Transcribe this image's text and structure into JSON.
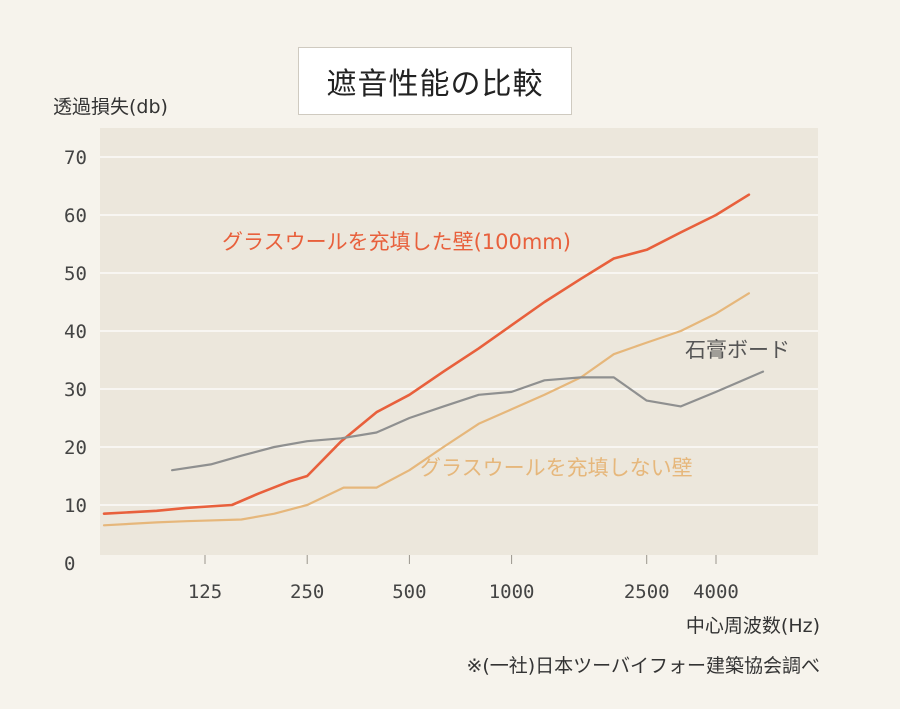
{
  "chart_data": {
    "type": "line",
    "title": "遮音性能の比較",
    "ylabel": "透過損失(db)",
    "xlabel": "中心周波数(Hz)",
    "source_note": "※(一社)日本ツーバイフォー建築協会調べ",
    "ylim": [
      0,
      72
    ],
    "y_ticks": [
      0,
      10,
      20,
      30,
      40,
      50,
      60,
      70
    ],
    "x_ticks": [
      {
        "label": "125",
        "x": 125
      },
      {
        "label": "250",
        "x": 250
      },
      {
        "label": "500",
        "x": 500
      },
      {
        "label": "1000",
        "x": 1000
      },
      {
        "label": "2500",
        "x": 2500
      },
      {
        "label": "4000",
        "x": 4000
      }
    ],
    "grid": true,
    "series": [
      {
        "name": "グラスウールを充填した壁(100mm)",
        "color": "#e8603c",
        "points": [
          {
            "x": 63,
            "y": 8.5
          },
          {
            "x": 90,
            "y": 9
          },
          {
            "x": 110,
            "y": 9.5
          },
          {
            "x": 150,
            "y": 10
          },
          {
            "x": 180,
            "y": 12
          },
          {
            "x": 220,
            "y": 14
          },
          {
            "x": 250,
            "y": 15
          },
          {
            "x": 315,
            "y": 21
          },
          {
            "x": 400,
            "y": 26
          },
          {
            "x": 500,
            "y": 29
          },
          {
            "x": 630,
            "y": 33
          },
          {
            "x": 800,
            "y": 37
          },
          {
            "x": 1000,
            "y": 41
          },
          {
            "x": 1250,
            "y": 45
          },
          {
            "x": 1600,
            "y": 49
          },
          {
            "x": 2000,
            "y": 52.5
          },
          {
            "x": 2500,
            "y": 54
          },
          {
            "x": 3150,
            "y": 57
          },
          {
            "x": 4000,
            "y": 60
          },
          {
            "x": 5000,
            "y": 63.5
          }
        ]
      },
      {
        "name": "グラスウールを充填しない壁",
        "color": "#e6b77b",
        "points": [
          {
            "x": 63,
            "y": 6.5
          },
          {
            "x": 90,
            "y": 7
          },
          {
            "x": 110,
            "y": 7.2
          },
          {
            "x": 160,
            "y": 7.5
          },
          {
            "x": 200,
            "y": 8.5
          },
          {
            "x": 250,
            "y": 10
          },
          {
            "x": 320,
            "y": 13
          },
          {
            "x": 400,
            "y": 13
          },
          {
            "x": 500,
            "y": 16
          },
          {
            "x": 630,
            "y": 20
          },
          {
            "x": 800,
            "y": 24
          },
          {
            "x": 1000,
            "y": 26.5
          },
          {
            "x": 1250,
            "y": 29
          },
          {
            "x": 1600,
            "y": 32
          },
          {
            "x": 2000,
            "y": 36
          },
          {
            "x": 2500,
            "y": 38
          },
          {
            "x": 3150,
            "y": 40
          },
          {
            "x": 4000,
            "y": 43
          },
          {
            "x": 5000,
            "y": 46.5
          }
        ]
      },
      {
        "name": "石膏ボード",
        "color": "#8f9090",
        "points": [
          {
            "x": 100,
            "y": 16
          },
          {
            "x": 130,
            "y": 17
          },
          {
            "x": 160,
            "y": 18.5
          },
          {
            "x": 200,
            "y": 20
          },
          {
            "x": 250,
            "y": 21
          },
          {
            "x": 315,
            "y": 21.5
          },
          {
            "x": 400,
            "y": 22.5
          },
          {
            "x": 500,
            "y": 25
          },
          {
            "x": 630,
            "y": 27
          },
          {
            "x": 800,
            "y": 29
          },
          {
            "x": 1000,
            "y": 29.5
          },
          {
            "x": 1250,
            "y": 31.5
          },
          {
            "x": 1600,
            "y": 32
          },
          {
            "x": 2000,
            "y": 32
          },
          {
            "x": 2500,
            "y": 28
          },
          {
            "x": 3150,
            "y": 27
          },
          {
            "x": 4000,
            "y": 29.5
          },
          {
            "x": 5500,
            "y": 33
          }
        ]
      }
    ]
  }
}
